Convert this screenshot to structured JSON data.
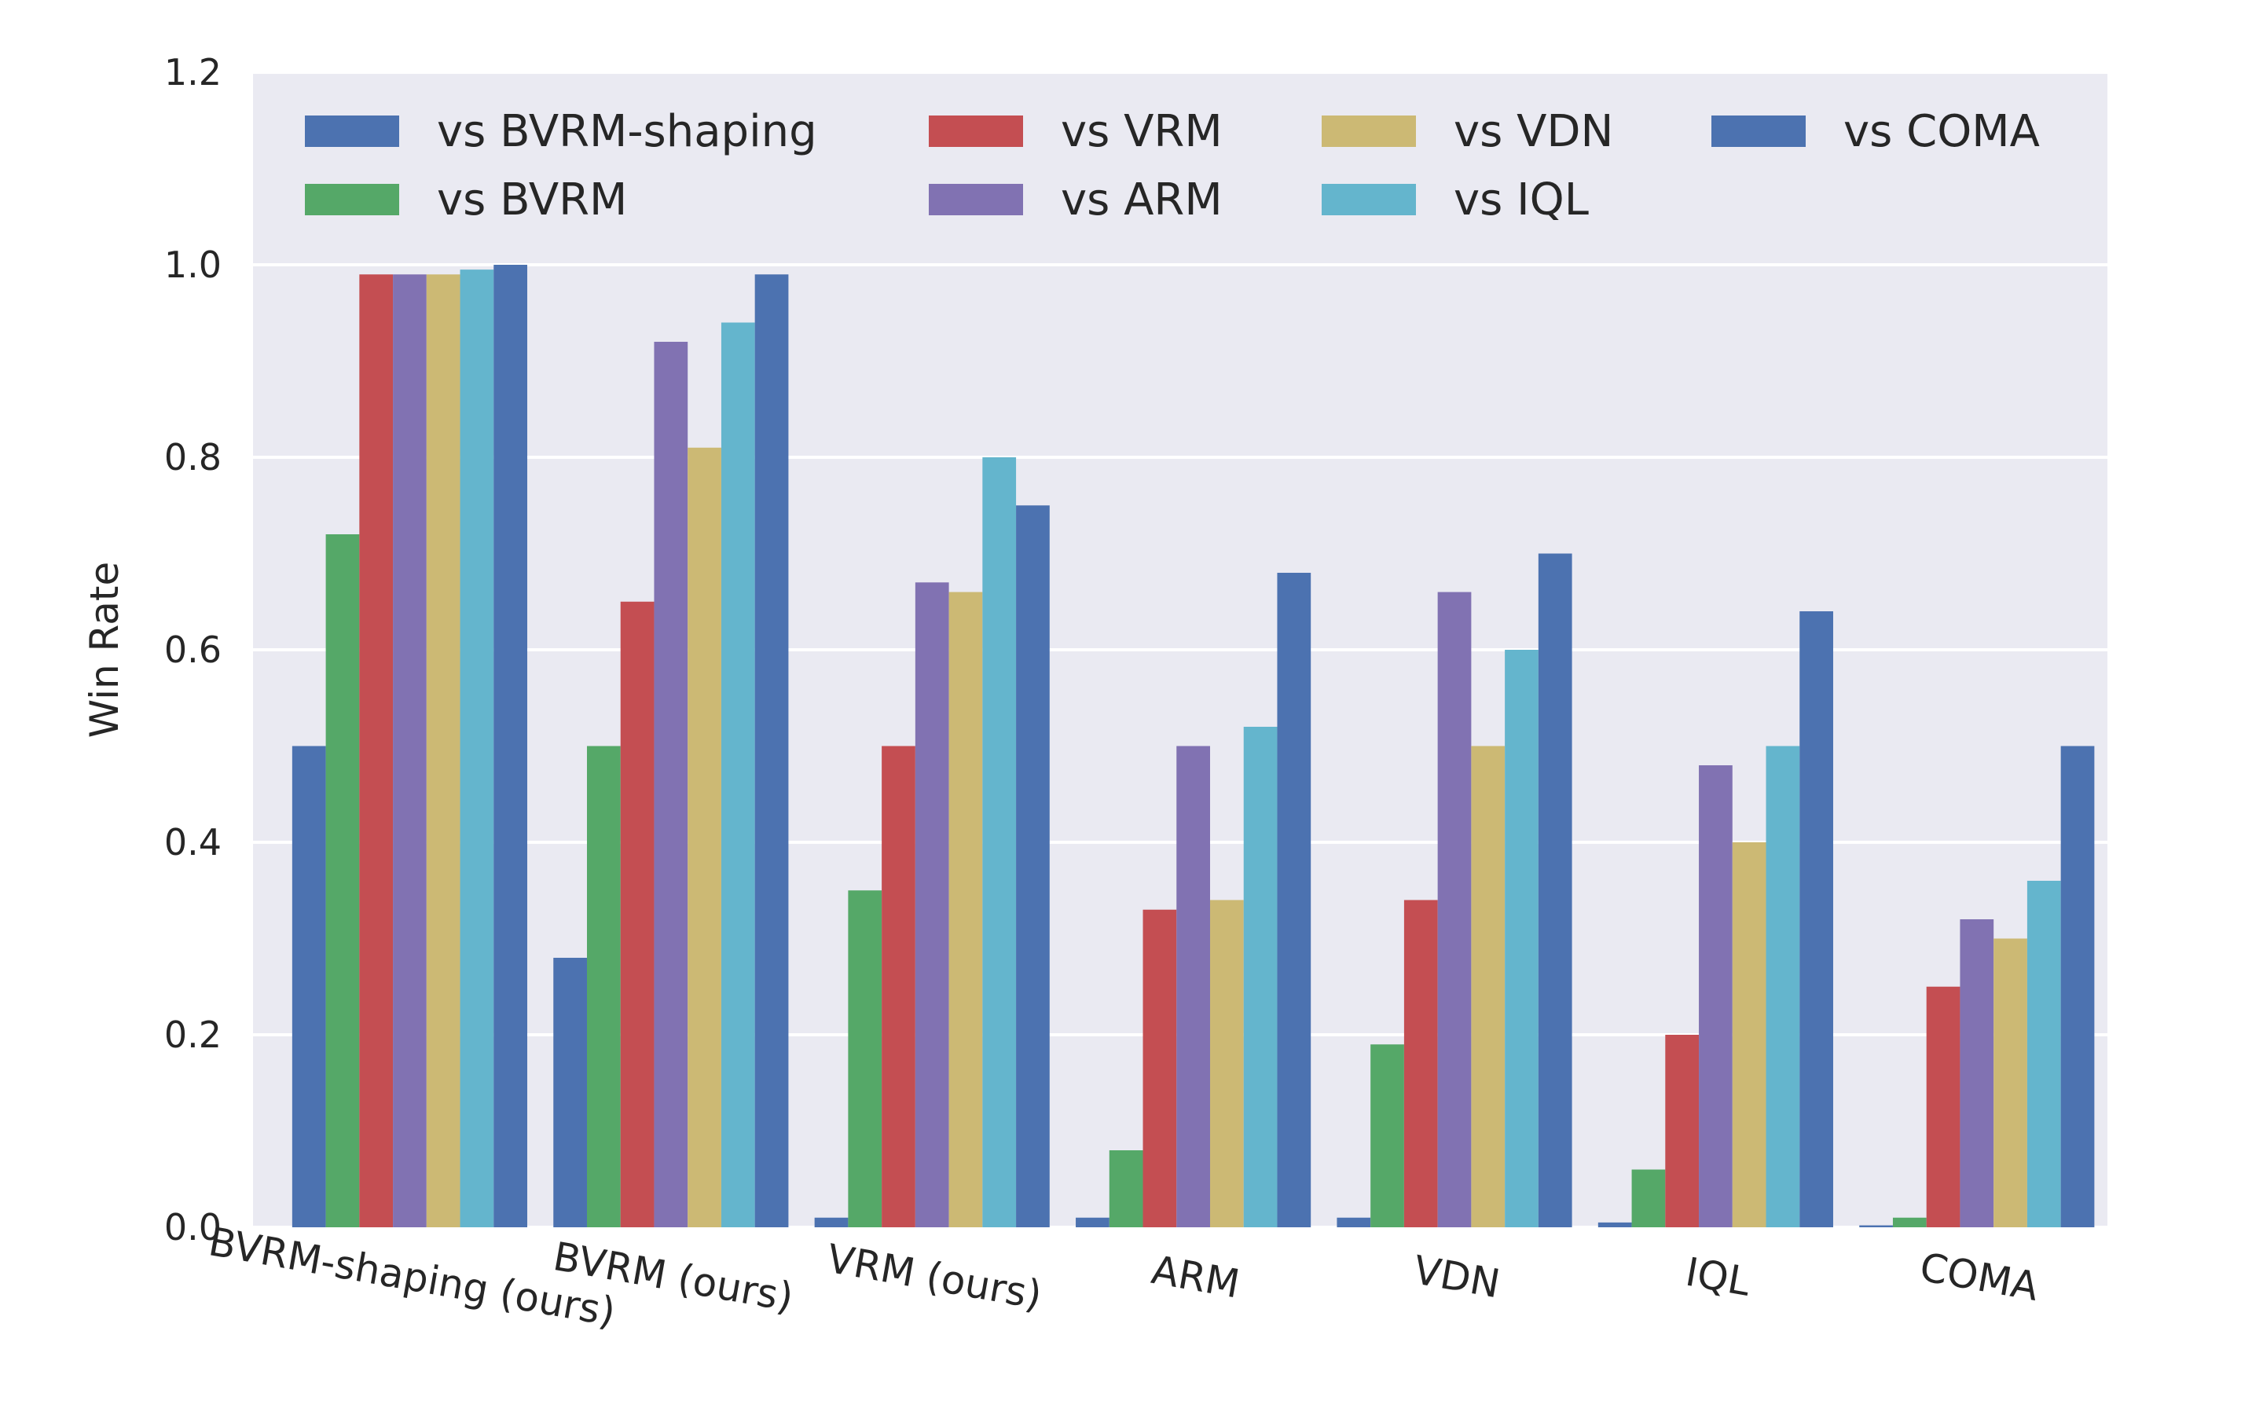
{
  "chart_data": {
    "type": "bar",
    "title": "",
    "xlabel": "",
    "ylabel": "Win Rate",
    "ylim": [
      0,
      1.2
    ],
    "yticks": [
      "0.0",
      "0.2",
      "0.4",
      "0.6",
      "0.8",
      "1.0",
      "1.2"
    ],
    "grid": true,
    "legend_position": "top",
    "categories": [
      "BVRM-shaping (ours)",
      "BVRM (ours)",
      "VRM (ours)",
      "ARM",
      "VDN",
      "IQL",
      "COMA"
    ],
    "series": [
      {
        "name": "vs BVRM-shaping",
        "color": "#4C72B0",
        "values": [
          0.5,
          0.28,
          0.01,
          0.01,
          0.01,
          0.005,
          0.002
        ]
      },
      {
        "name": "vs BVRM",
        "color": "#55A868",
        "values": [
          0.72,
          0.5,
          0.35,
          0.08,
          0.19,
          0.06,
          0.01
        ]
      },
      {
        "name": "vs VRM",
        "color": "#C44E52",
        "values": [
          0.99,
          0.65,
          0.5,
          0.33,
          0.34,
          0.2,
          0.25
        ]
      },
      {
        "name": "vs ARM",
        "color": "#8172B2",
        "values": [
          0.99,
          0.92,
          0.67,
          0.5,
          0.66,
          0.48,
          0.32
        ]
      },
      {
        "name": "vs VDN",
        "color": "#CCB974",
        "values": [
          0.99,
          0.81,
          0.66,
          0.34,
          0.5,
          0.4,
          0.3
        ]
      },
      {
        "name": "vs IQL",
        "color": "#64B5CD",
        "values": [
          0.995,
          0.94,
          0.8,
          0.52,
          0.6,
          0.5,
          0.36
        ]
      },
      {
        "name": "vs COMA",
        "color": "#4C72B0",
        "values": [
          1.0,
          0.99,
          0.75,
          0.68,
          0.7,
          0.64,
          0.5
        ]
      }
    ]
  }
}
